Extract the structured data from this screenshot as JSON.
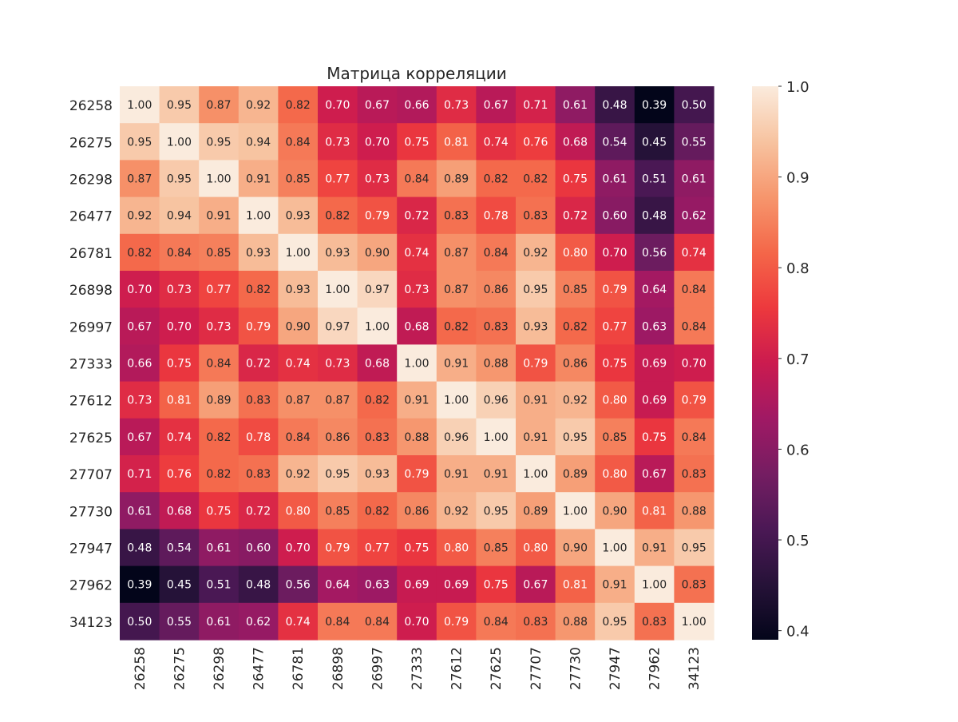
{
  "chart_data": {
    "type": "heatmap",
    "title": "Матрица корреляции",
    "xlabel": "",
    "ylabel": "",
    "labels": [
      "26258",
      "26275",
      "26298",
      "26477",
      "26781",
      "26898",
      "26997",
      "27333",
      "27612",
      "27625",
      "27707",
      "27730",
      "27947",
      "27962",
      "34123"
    ],
    "values": [
      [
        1.0,
        0.95,
        0.87,
        0.92,
        0.82,
        0.7,
        0.67,
        0.66,
        0.73,
        0.67,
        0.71,
        0.61,
        0.48,
        0.39,
        0.5
      ],
      [
        0.95,
        1.0,
        0.95,
        0.94,
        0.84,
        0.73,
        0.7,
        0.75,
        0.81,
        0.74,
        0.76,
        0.68,
        0.54,
        0.45,
        0.55
      ],
      [
        0.87,
        0.95,
        1.0,
        0.91,
        0.85,
        0.77,
        0.73,
        0.84,
        0.89,
        0.82,
        0.82,
        0.75,
        0.61,
        0.51,
        0.61
      ],
      [
        0.92,
        0.94,
        0.91,
        1.0,
        0.93,
        0.82,
        0.79,
        0.72,
        0.83,
        0.78,
        0.83,
        0.72,
        0.6,
        0.48,
        0.62
      ],
      [
        0.82,
        0.84,
        0.85,
        0.93,
        1.0,
        0.93,
        0.9,
        0.74,
        0.87,
        0.84,
        0.92,
        0.8,
        0.7,
        0.56,
        0.74
      ],
      [
        0.7,
        0.73,
        0.77,
        0.82,
        0.93,
        1.0,
        0.97,
        0.73,
        0.87,
        0.86,
        0.95,
        0.85,
        0.79,
        0.64,
        0.84
      ],
      [
        0.67,
        0.7,
        0.73,
        0.79,
        0.9,
        0.97,
        1.0,
        0.68,
        0.82,
        0.83,
        0.93,
        0.82,
        0.77,
        0.63,
        0.84
      ],
      [
        0.66,
        0.75,
        0.84,
        0.72,
        0.74,
        0.73,
        0.68,
        1.0,
        0.91,
        0.88,
        0.79,
        0.86,
        0.75,
        0.69,
        0.7
      ],
      [
        0.73,
        0.81,
        0.89,
        0.83,
        0.87,
        0.87,
        0.82,
        0.91,
        1.0,
        0.96,
        0.91,
        0.92,
        0.8,
        0.69,
        0.79
      ],
      [
        0.67,
        0.74,
        0.82,
        0.78,
        0.84,
        0.86,
        0.83,
        0.88,
        0.96,
        1.0,
        0.91,
        0.95,
        0.85,
        0.75,
        0.84
      ],
      [
        0.71,
        0.76,
        0.82,
        0.83,
        0.92,
        0.95,
        0.93,
        0.79,
        0.91,
        0.91,
        1.0,
        0.89,
        0.8,
        0.67,
        0.83
      ],
      [
        0.61,
        0.68,
        0.75,
        0.72,
        0.8,
        0.85,
        0.82,
        0.86,
        0.92,
        0.95,
        0.89,
        1.0,
        0.9,
        0.81,
        0.88
      ],
      [
        0.48,
        0.54,
        0.61,
        0.6,
        0.7,
        0.79,
        0.77,
        0.75,
        0.8,
        0.85,
        0.8,
        0.9,
        1.0,
        0.91,
        0.95
      ],
      [
        0.39,
        0.45,
        0.51,
        0.48,
        0.56,
        0.64,
        0.63,
        0.69,
        0.69,
        0.75,
        0.67,
        0.81,
        0.91,
        1.0,
        0.83
      ],
      [
        0.5,
        0.55,
        0.61,
        0.62,
        0.74,
        0.84,
        0.84,
        0.7,
        0.79,
        0.84,
        0.83,
        0.88,
        0.95,
        0.83,
        1.0
      ]
    ],
    "value_format": "0.00",
    "colormap": "rocket",
    "vmin": 0.39,
    "vmax": 1.0,
    "colorbar": {
      "ticks": [
        0.4,
        0.5,
        0.6,
        0.7,
        0.8,
        0.9,
        1.0
      ],
      "tick_labels": [
        "0.4",
        "0.5",
        "0.6",
        "0.7",
        "0.8",
        "0.9",
        "1.0"
      ],
      "placement": "right"
    },
    "grid": false
  }
}
